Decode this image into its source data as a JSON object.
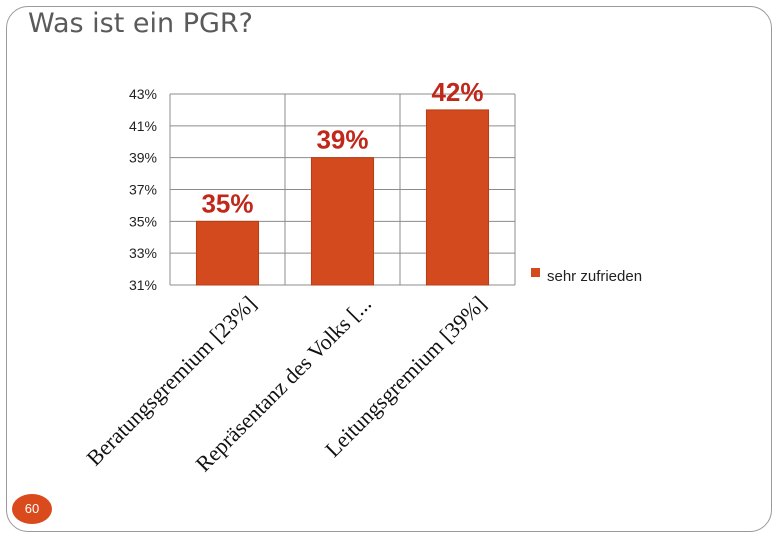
{
  "slide": {
    "title": "Was ist ein PGR?",
    "page_number": "60"
  },
  "colors": {
    "bar": "#d24a1d",
    "bar_edge": "#b83d14",
    "label": "#c0281b",
    "grid": "#8c8c8c",
    "text": "#222222"
  },
  "chart_data": {
    "type": "bar",
    "categories": [
      "Beratungsgremium [23%]",
      "Repräsentanz des Volks [...",
      "Leitungsgremium [39%]"
    ],
    "series": [
      {
        "name": "sehr zufrieden",
        "values": [
          35,
          39,
          42
        ]
      }
    ],
    "data_labels": [
      "35%",
      "39%",
      "42%"
    ],
    "y_ticks": [
      "31%",
      "33%",
      "35%",
      "37%",
      "39%",
      "41%",
      "43%"
    ],
    "ylim": [
      31,
      43
    ],
    "ytick_step": 2,
    "grid": true,
    "legend": "right"
  }
}
